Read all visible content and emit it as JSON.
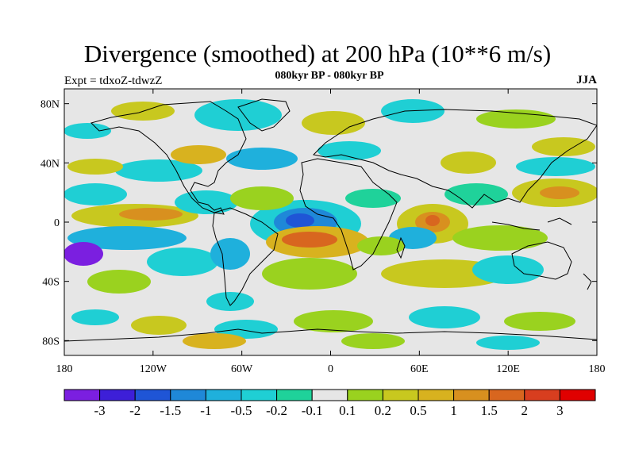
{
  "title": "Divergence (smoothed) at 200 hPa (10**6 m/s)",
  "subtitle": "080kyr BP - 080kyr BP",
  "expt_label": "Expt = tdxoZ-tdwzZ",
  "season": "JJA",
  "map": {
    "projection": "cylindrical-equidistant",
    "lon_range": [
      -180,
      180
    ],
    "lat_range": [
      -90,
      90
    ],
    "lat_ticks": [
      "80N",
      "40N",
      "0",
      "40S",
      "80S"
    ],
    "lon_ticks": [
      "180",
      "120W",
      "60W",
      "0",
      "60E",
      "120E",
      "180"
    ],
    "background_color": "#e6e6e6"
  },
  "colorbar": {
    "labels": [
      "-3",
      "-2",
      "-1.5",
      "-1",
      "-0.5",
      "-0.2",
      "-0.1",
      "0.1",
      "0.2",
      "0.5",
      "1",
      "1.5",
      "2",
      "3"
    ],
    "colors": [
      "#7b1fe0",
      "#3d1fd8",
      "#1f55d6",
      "#1f88d8",
      "#1fb0dc",
      "#1fcfd4",
      "#1fd29a",
      "#e6e6e6",
      "#9ad21f",
      "#c8c81f",
      "#d8b21f",
      "#d8901f",
      "#d8661f",
      "#d83e1f",
      "#e00000"
    ]
  }
}
